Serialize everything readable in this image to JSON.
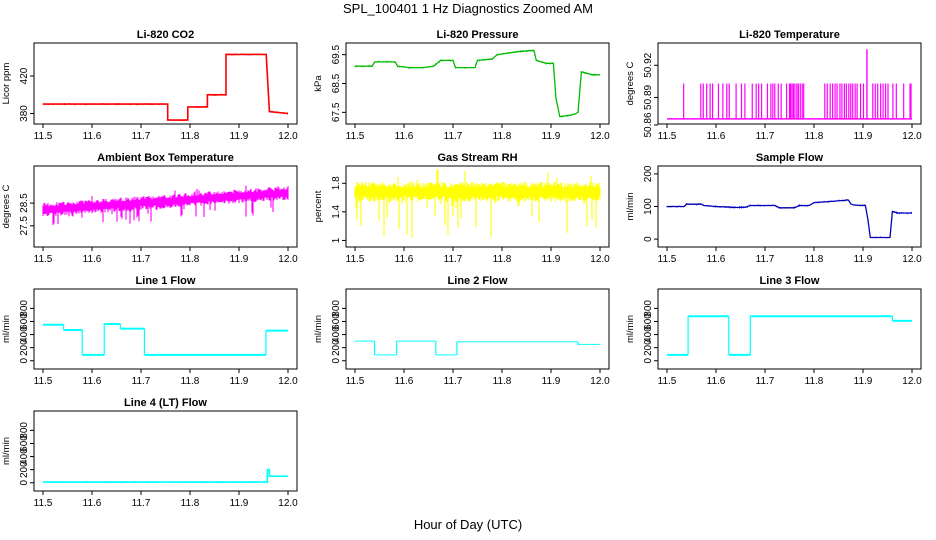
{
  "figure": {
    "title": "SPL_100401  1 Hz Diagnostics Zoomed AM",
    "xlabel": "Hour of Day (UTC)"
  },
  "chart_data": [
    {
      "type": "line",
      "title": "Li-820 CO2",
      "ylabel": "Licor ppm",
      "color": "#ff0000",
      "xlim": [
        11.5,
        12.0
      ],
      "ylim": [
        372,
        452
      ],
      "yticks": [
        380,
        420
      ],
      "xticks": [
        11.5,
        11.6,
        11.7,
        11.8,
        11.9,
        12.0
      ],
      "style": "step",
      "x": [
        11.5,
        11.7545,
        11.7545,
        11.7955,
        11.7955,
        11.8355,
        11.8355,
        11.8735,
        11.8735,
        11.9555,
        11.9555,
        11.962,
        11.962,
        12.0
      ],
      "y": [
        390,
        390,
        373,
        373,
        387,
        387,
        400,
        400,
        443,
        443,
        443,
        382,
        382,
        380
      ]
    },
    {
      "type": "line",
      "title": "Li-820 Pressure",
      "ylabel": "kPa",
      "color": "#00bb00",
      "xlim": [
        11.5,
        12.0
      ],
      "ylim": [
        67.2,
        69.8
      ],
      "yticks": [
        67.5,
        68.5,
        69.5
      ],
      "xticks": [
        11.5,
        11.6,
        11.7,
        11.8,
        11.9,
        12.0
      ],
      "style": "line",
      "x": [
        11.5,
        11.535,
        11.54,
        11.582,
        11.587,
        11.61,
        11.64,
        11.66,
        11.675,
        11.7,
        11.705,
        11.745,
        11.75,
        11.78,
        11.79,
        11.83,
        11.865,
        11.87,
        11.89,
        11.905,
        11.91,
        11.918,
        11.94,
        11.95,
        11.955,
        11.962,
        11.985,
        12.0
      ],
      "y": [
        69.1,
        69.1,
        69.25,
        69.25,
        69.1,
        69.05,
        69.05,
        69.1,
        69.3,
        69.3,
        69.05,
        69.05,
        69.3,
        69.35,
        69.5,
        69.6,
        69.65,
        69.3,
        69.2,
        69.2,
        68.0,
        67.35,
        67.4,
        67.45,
        67.5,
        68.9,
        68.8,
        68.8
      ]
    },
    {
      "type": "spikes",
      "title": "Li-820 Temperature",
      "ylabel": "degrees C",
      "color": "#ff00ff",
      "xlim": [
        11.5,
        12.0
      ],
      "ylim": [
        50.868,
        50.938
      ],
      "yticks": [
        50.89,
        50.92
      ],
      "extra_yticks": [
        50.86
      ],
      "xticks": [
        11.5,
        11.6,
        11.7,
        11.8,
        11.9,
        12.0
      ],
      "base": 50.87,
      "spike_top": 50.903,
      "x": [
        11.534,
        11.569,
        11.574,
        11.581,
        11.588,
        11.593,
        11.605,
        11.614,
        11.622,
        11.627,
        11.641,
        11.652,
        11.659,
        11.674,
        11.682,
        11.687,
        11.693,
        11.705,
        11.712,
        11.716,
        11.72,
        11.727,
        11.733,
        11.744,
        11.75,
        11.752,
        11.755,
        11.758,
        11.761,
        11.765,
        11.768,
        11.772,
        11.776,
        11.779,
        11.822,
        11.827,
        11.833,
        11.838,
        11.843,
        11.847,
        11.853,
        11.857,
        11.862,
        11.866,
        11.871,
        11.875,
        11.879,
        11.884,
        11.888,
        11.895,
        11.901,
        11.92,
        11.925,
        11.93,
        11.936,
        11.941,
        11.946,
        11.951,
        11.961,
        11.968,
        11.983,
        11.996,
        11.998
      ],
      "peak_x": 11.908,
      "peak_y": 50.935
    },
    {
      "type": "noise",
      "title": "Ambient Box Temperature",
      "ylabel": "degrees C",
      "color": "#ff00ff",
      "xlim": [
        11.5,
        12.0
      ],
      "ylim": [
        26.7,
        30.0
      ],
      "yticks": [
        27.5,
        28.5
      ],
      "xticks": [
        11.5,
        11.6,
        11.7,
        11.8,
        11.9,
        12.0
      ],
      "trend_x": [
        11.5,
        12.0
      ],
      "trend_y": [
        28.2,
        28.95
      ],
      "band": 0.22,
      "dips": 0.7
    },
    {
      "type": "noise",
      "title": "Gas Stream RH",
      "ylabel": "percent",
      "color": "#ffff00",
      "xlim": [
        11.5,
        12.0
      ],
      "ylim": [
        0.95,
        2.0
      ],
      "yticks": [
        1.0,
        1.4,
        1.8
      ],
      "xticks": [
        11.5,
        11.6,
        11.7,
        11.8,
        11.9,
        12.0
      ],
      "trend_x": [
        11.5,
        12.0
      ],
      "trend_y": [
        1.68,
        1.68
      ],
      "band": 0.1,
      "dips": 0.55
    },
    {
      "type": "line",
      "title": "Sample Flow",
      "ylabel": "ml/min",
      "color": "#0000bb",
      "xlim": [
        11.5,
        12.0
      ],
      "ylim": [
        -15,
        215
      ],
      "yticks": [
        0,
        100,
        200
      ],
      "xticks": [
        11.5,
        11.6,
        11.7,
        11.8,
        11.9,
        12.0
      ],
      "style": "line",
      "x": [
        11.5,
        11.535,
        11.54,
        11.57,
        11.575,
        11.6,
        11.64,
        11.66,
        11.67,
        11.72,
        11.73,
        11.76,
        11.77,
        11.79,
        11.8,
        11.83,
        11.87,
        11.875,
        11.88,
        11.895,
        11.905,
        11.91,
        11.915,
        11.955,
        11.96,
        11.97,
        12.0
      ],
      "y": [
        100,
        100,
        107,
        107,
        103,
        100,
        97,
        98,
        103,
        103,
        96,
        96,
        103,
        103,
        112,
        115,
        120,
        108,
        105,
        103,
        103,
        60,
        5,
        5,
        85,
        80,
        80
      ]
    },
    {
      "type": "line",
      "title": "Line 1 Flow",
      "ylabel": "ml/min",
      "color": "#00ffff",
      "xlim": [
        11.5,
        12.0
      ],
      "ylim": [
        -80,
        1050
      ],
      "yticks": [
        0,
        200,
        400,
        600,
        800
      ],
      "xticks": [
        11.5,
        11.6,
        11.7,
        11.8,
        11.9,
        12.0
      ],
      "style": "step",
      "band": 30,
      "x": [
        11.5,
        11.542,
        11.542,
        11.58,
        11.58,
        11.625,
        11.625,
        11.658,
        11.658,
        11.707,
        11.707,
        11.955,
        11.955,
        12.0
      ],
      "y": [
        550,
        550,
        470,
        470,
        90,
        90,
        560,
        560,
        490,
        490,
        90,
        90,
        460,
        460
      ]
    },
    {
      "type": "line",
      "title": "Line 2 Flow",
      "ylabel": "ml/min",
      "color": "#00ffff",
      "xlim": [
        11.5,
        12.0
      ],
      "ylim": [
        -80,
        1050
      ],
      "yticks": [
        0,
        200,
        400,
        600,
        800
      ],
      "xticks": [
        11.5,
        11.6,
        11.7,
        11.8,
        11.9,
        12.0
      ],
      "style": "step",
      "band": 15,
      "x": [
        11.5,
        11.54,
        11.54,
        11.585,
        11.585,
        11.665,
        11.665,
        11.708,
        11.708,
        11.955,
        11.955,
        12.0
      ],
      "y": [
        300,
        300,
        90,
        90,
        300,
        300,
        90,
        90,
        290,
        290,
        250,
        250
      ]
    },
    {
      "type": "line",
      "title": "Line 3 Flow",
      "ylabel": "ml/min",
      "color": "#00ffff",
      "xlim": [
        11.5,
        12.0
      ],
      "ylim": [
        -80,
        1050
      ],
      "yticks": [
        0,
        200,
        400,
        600,
        800
      ],
      "xticks": [
        11.5,
        11.6,
        11.7,
        11.8,
        11.9,
        12.0
      ],
      "style": "step",
      "band": 30,
      "x": [
        11.5,
        11.543,
        11.543,
        11.626,
        11.626,
        11.67,
        11.67,
        11.96,
        11.96,
        12.0
      ],
      "y": [
        90,
        90,
        680,
        680,
        90,
        90,
        680,
        680,
        610,
        610
      ]
    },
    {
      "type": "line",
      "title": "Line 4 (LT) Flow",
      "ylabel": "ml/min",
      "color": "#00ffff",
      "xlim": [
        11.5,
        12.0
      ],
      "ylim": [
        -80,
        1050
      ],
      "yticks": [
        0,
        200,
        400,
        600,
        800
      ],
      "xticks": [
        11.5,
        11.6,
        11.7,
        11.8,
        11.9,
        12.0
      ],
      "style": "step",
      "band": 0,
      "x": [
        11.5,
        11.958,
        11.958,
        11.962,
        11.962,
        12.0
      ],
      "y": [
        10,
        10,
        200,
        200,
        100,
        100
      ]
    }
  ]
}
